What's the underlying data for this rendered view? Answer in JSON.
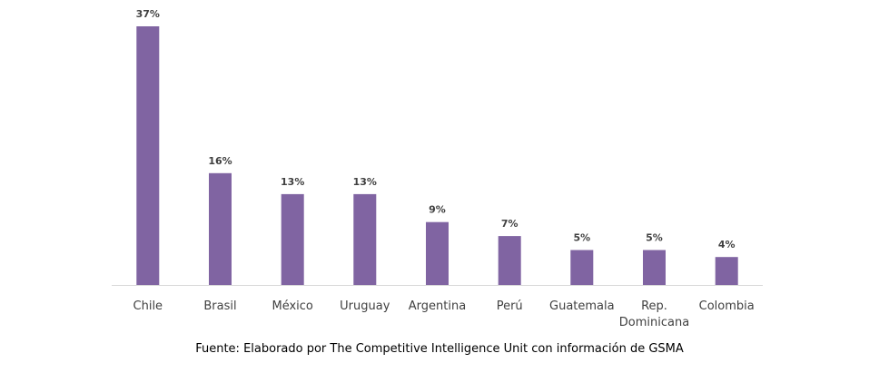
{
  "chart_data": {
    "type": "bar",
    "categories": [
      "Chile",
      "Brasil",
      "México",
      "Uruguay",
      "Argentina",
      "Perú",
      "Guatemala",
      "Rep. Dominicana",
      "Colombia"
    ],
    "tick_lines": [
      [
        "Chile"
      ],
      [
        "Brasil"
      ],
      [
        "México"
      ],
      [
        "Uruguay"
      ],
      [
        "Argentina"
      ],
      [
        "Perú"
      ],
      [
        "Guatemala"
      ],
      [
        "Rep.",
        "Dominicana"
      ],
      [
        "Colombia"
      ]
    ],
    "values": [
      37,
      16,
      13,
      13,
      9,
      7,
      5,
      5,
      4
    ],
    "value_labels": [
      "37%",
      "16%",
      "13%",
      "13%",
      "9%",
      "7%",
      "5%",
      "5%",
      "4%"
    ],
    "title": "",
    "xlabel": "",
    "ylabel": "",
    "ylim": [
      0,
      37
    ],
    "grid": false,
    "legend": "none",
    "bar_color": "#8064a2",
    "axis_color": "#d9d9d9"
  },
  "source_note": "Fuente: Elaborado por The Competitive Intelligence Unit con información de GSMA"
}
